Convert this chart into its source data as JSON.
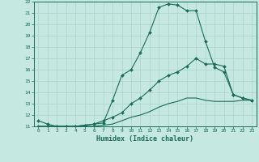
{
  "xlabel": "Humidex (Indice chaleur)",
  "bg_color": "#c5e8e0",
  "line_color": "#1a6b5a",
  "grid_color": "#b0d8ce",
  "xlim": [
    -0.5,
    23.5
  ],
  "ylim": [
    11,
    22
  ],
  "xticks": [
    0,
    1,
    2,
    3,
    4,
    5,
    6,
    7,
    8,
    9,
    10,
    11,
    12,
    13,
    14,
    15,
    16,
    17,
    18,
    19,
    20,
    21,
    22,
    23
  ],
  "yticks": [
    11,
    12,
    13,
    14,
    15,
    16,
    17,
    18,
    19,
    20,
    21,
    22
  ],
  "line1_x": [
    0,
    1,
    2,
    3,
    4,
    5,
    6,
    7,
    8,
    9,
    10,
    11,
    12,
    13,
    14,
    15,
    16,
    17,
    18,
    19,
    20,
    21,
    22,
    23
  ],
  "line1_y": [
    11.5,
    11.2,
    11.0,
    11.0,
    11.0,
    11.1,
    11.2,
    11.3,
    13.3,
    15.5,
    16.0,
    17.5,
    19.3,
    21.5,
    21.8,
    21.7,
    21.2,
    21.2,
    18.5,
    16.2,
    15.8,
    13.8,
    13.5,
    13.3
  ],
  "line2_x": [
    0,
    1,
    2,
    3,
    4,
    5,
    6,
    7,
    8,
    9,
    10,
    11,
    12,
    13,
    14,
    15,
    16,
    17,
    18,
    19,
    20,
    21,
    22,
    23
  ],
  "line2_y": [
    11.0,
    11.0,
    11.0,
    11.0,
    11.0,
    11.1,
    11.2,
    11.5,
    11.8,
    12.2,
    13.0,
    13.5,
    14.2,
    15.0,
    15.5,
    15.8,
    16.3,
    17.0,
    16.5,
    16.5,
    16.3,
    13.8,
    13.5,
    13.3
  ],
  "line3_x": [
    0,
    1,
    2,
    3,
    4,
    5,
    6,
    7,
    8,
    9,
    10,
    11,
    12,
    13,
    14,
    15,
    16,
    17,
    18,
    19,
    20,
    21,
    22,
    23
  ],
  "line3_y": [
    11.0,
    11.0,
    11.0,
    11.0,
    11.0,
    11.0,
    11.0,
    11.1,
    11.2,
    11.5,
    11.8,
    12.0,
    12.3,
    12.7,
    13.0,
    13.2,
    13.5,
    13.5,
    13.3,
    13.2,
    13.2,
    13.2,
    13.3,
    13.3
  ]
}
